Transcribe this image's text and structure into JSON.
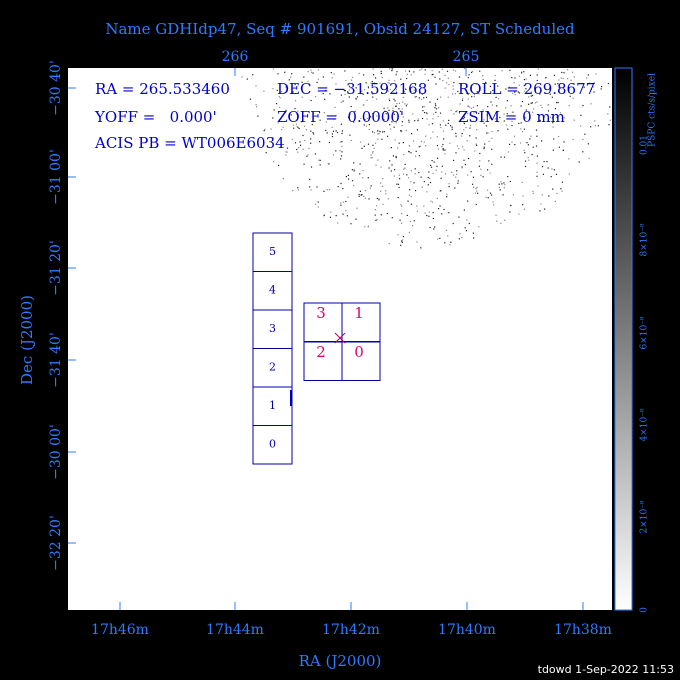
{
  "header": {
    "title": "Name GDHIdp47, Seq # 901691, Obsid 24127, ST Scheduled"
  },
  "axes": {
    "top_ticks": [
      "266",
      "265"
    ],
    "left_ticks": [
      "−30 40'",
      "−31 00'",
      "−31 20'",
      "−31 40'",
      "−30 00'",
      "−32 20'"
    ],
    "bottom_ticks": [
      "17h46m",
      "17h44m",
      "17h42m",
      "17h40m",
      "17h38m"
    ],
    "x_label": "RA (J2000)",
    "y_label": "Dec (J2000)"
  },
  "info": {
    "ra": "RA = 265.533460",
    "dec": "DEC = −31.592168",
    "roll": "ROLL = 269.8677",
    "yoff": "YOFF =   0.000'",
    "zoff": "ZOFF =  0.0000'",
    "zsim": "ZSIM = 0 mm",
    "acis": "ACIS PB = WT006E6034"
  },
  "acis_s": {
    "chips": [
      "5",
      "4",
      "3",
      "2",
      "1",
      "0"
    ]
  },
  "acis_i": {
    "chips": [
      "3",
      "1",
      "2",
      "0"
    ]
  },
  "colorbar": {
    "label": "PSPC cts/s/pixel",
    "ticks": [
      "0.01",
      "8×10⁻⁸",
      "6×10⁻⁸",
      "4×10⁻⁸",
      "2×10⁻⁸",
      "0"
    ]
  },
  "footer": "tdowd  1-Sep-2022 11:53"
}
